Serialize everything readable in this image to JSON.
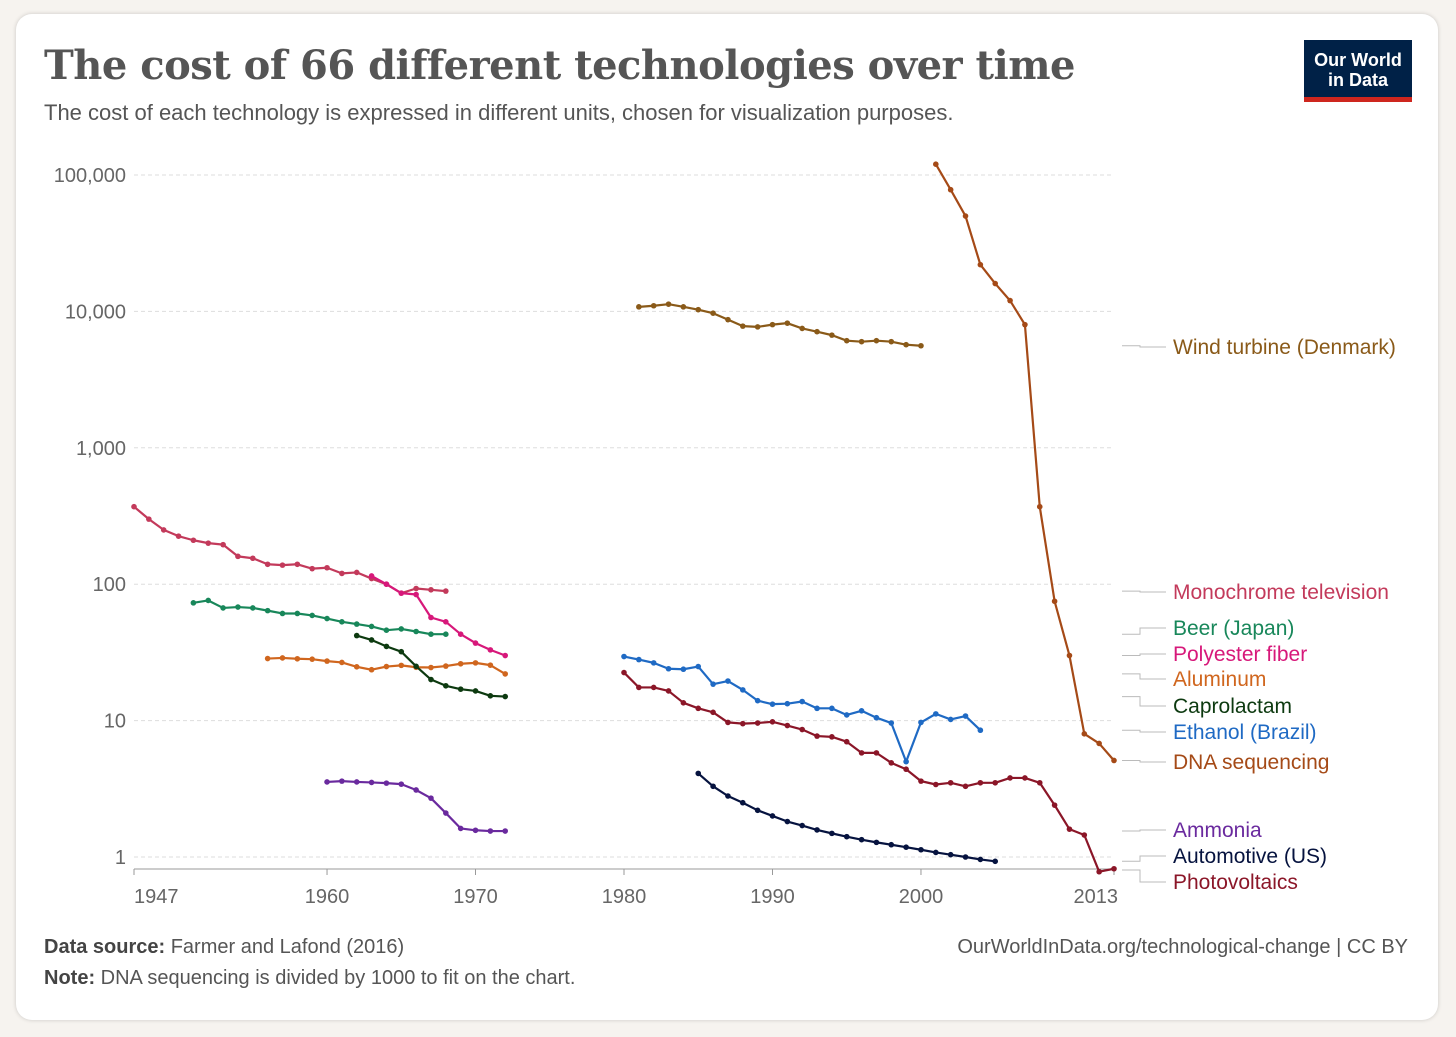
{
  "header": {
    "title": "The cost of 66 different technologies over time",
    "subtitle": "The cost of each technology is expressed in different units, chosen for visualization purposes."
  },
  "logo": {
    "line1": "Our World",
    "line2": "in Data",
    "bg": "#002147",
    "accent": "#ce261e"
  },
  "footer": {
    "source_label": "Data source:",
    "source_text": "Farmer and Lafond (2016)",
    "note_label": "Note:",
    "note_text": "DNA sequencing is divided by 1000 to fit on the chart.",
    "url": "OurWorldInData.org/technological-change",
    "license": "CC BY"
  },
  "chart_data": {
    "type": "line",
    "y_scale": "log",
    "ylim": [
      0.8,
      130000
    ],
    "xlim": [
      1947,
      2013
    ],
    "y_ticks": [
      1,
      10,
      100,
      1000,
      10000,
      100000
    ],
    "y_tick_labels": [
      "1",
      "10",
      "100",
      "1,000",
      "10,000",
      "100,000"
    ],
    "x_ticks": [
      1947,
      1960,
      1970,
      1980,
      1990,
      2000,
      2013
    ],
    "x_tick_labels": [
      "1947",
      "1960",
      "1970",
      "1980",
      "1990",
      "2000",
      "2013"
    ],
    "grid": "horizontal-dashed",
    "legend": "right-end-labels",
    "series": [
      {
        "name": "Wind turbine (Denmark)",
        "color": "#8a5a19",
        "x": [
          1981,
          1982,
          1983,
          1984,
          1985,
          1986,
          1987,
          1988,
          1989,
          1990,
          1991,
          1992,
          1993,
          1994,
          1995,
          1996,
          1997,
          1998,
          1999,
          2000
        ],
        "y": [
          10800,
          11000,
          11300,
          10800,
          10300,
          9700,
          8700,
          7800,
          7700,
          8000,
          8200,
          7500,
          7100,
          6700,
          6100,
          6000,
          6100,
          6000,
          5700,
          5600
        ]
      },
      {
        "name": "Monochrome television",
        "color": "#c33a5b",
        "x": [
          1947,
          1948,
          1949,
          1950,
          1951,
          1952,
          1953,
          1954,
          1955,
          1956,
          1957,
          1958,
          1959,
          1960,
          1961,
          1962,
          1963,
          1964,
          1965,
          1966,
          1967,
          1968
        ],
        "y": [
          370,
          300,
          250,
          225,
          210,
          200,
          195,
          160,
          155,
          140,
          138,
          140,
          130,
          132,
          120,
          122,
          110,
          100,
          86,
          93,
          91,
          89
        ]
      },
      {
        "name": "Beer (Japan)",
        "color": "#18875a",
        "x": [
          1951,
          1952,
          1953,
          1954,
          1955,
          1956,
          1957,
          1958,
          1959,
          1960,
          1961,
          1962,
          1963,
          1964,
          1965,
          1966,
          1967,
          1968
        ],
        "y": [
          73,
          76,
          67,
          68,
          67,
          64,
          61,
          61,
          59,
          56,
          53,
          51,
          49,
          46,
          47,
          45,
          43,
          43
        ]
      },
      {
        "name": "Polyester fiber",
        "color": "#d7187a",
        "x": [
          1963,
          1964,
          1965,
          1966,
          1967,
          1968,
          1969,
          1970,
          1971,
          1972
        ],
        "y": [
          115,
          100,
          86,
          84,
          57,
          53,
          43,
          37,
          33,
          30
        ]
      },
      {
        "name": "Aluminum",
        "color": "#d0661e",
        "x": [
          1956,
          1957,
          1958,
          1959,
          1960,
          1961,
          1962,
          1963,
          1964,
          1965,
          1966,
          1967,
          1968,
          1969,
          1970,
          1971,
          1972
        ],
        "y": [
          28.5,
          28.8,
          28.4,
          28.2,
          27.3,
          26.7,
          24.8,
          23.6,
          24.9,
          25.4,
          24.6,
          24.5,
          25.1,
          26.1,
          26.5,
          25.5,
          22
        ]
      },
      {
        "name": "Caprolactam",
        "color": "#0d3a10",
        "x": [
          1962,
          1963,
          1964,
          1965,
          1966,
          1967,
          1968,
          1969,
          1970,
          1971,
          1972
        ],
        "y": [
          42,
          39,
          35,
          32,
          25,
          20,
          18,
          17,
          16.5,
          15.2,
          15
        ]
      },
      {
        "name": "Ethanol (Brazil)",
        "color": "#1f6ac4",
        "x": [
          1980,
          1981,
          1982,
          1983,
          1984,
          1985,
          1986,
          1987,
          1988,
          1989,
          1990,
          1991,
          1992,
          1993,
          1994,
          1995,
          1996,
          1997,
          1998,
          1999,
          2000,
          2001,
          2002,
          2003,
          2004
        ],
        "y": [
          29.5,
          28,
          26.5,
          24,
          23.8,
          24.9,
          18.5,
          19.5,
          16.8,
          14,
          13.2,
          13.3,
          13.8,
          12.3,
          12.3,
          11,
          11.8,
          10.5,
          9.6,
          5,
          9.7,
          11.2,
          10.2,
          10.8,
          8.5
        ]
      },
      {
        "name": "DNA sequencing",
        "color": "#a54a17",
        "x": [
          2001,
          2002,
          2003,
          2004,
          2005,
          2006,
          2007,
          2008,
          2009,
          2010,
          2011,
          2012,
          2013
        ],
        "y": [
          120000,
          78000,
          50000,
          22000,
          16000,
          12000,
          8000,
          370,
          75,
          30,
          8,
          6.8,
          5.1
        ]
      },
      {
        "name": "Ammonia",
        "color": "#6a2a9e",
        "x": [
          1960,
          1961,
          1962,
          1963,
          1964,
          1965,
          1966,
          1967,
          1968,
          1969,
          1970,
          1971,
          1972
        ],
        "y": [
          3.55,
          3.6,
          3.55,
          3.52,
          3.48,
          3.42,
          3.1,
          2.7,
          2.1,
          1.62,
          1.57,
          1.55,
          1.55
        ]
      },
      {
        "name": "Automotive (US)",
        "color": "#06133f",
        "x": [
          1985,
          1986,
          1987,
          1988,
          1989,
          1990,
          1991,
          1992,
          1993,
          1994,
          1995,
          1996,
          1997,
          1998,
          1999,
          2000,
          2001,
          2002,
          2003,
          2004,
          2005
        ],
        "y": [
          4.1,
          3.3,
          2.8,
          2.5,
          2.2,
          2.0,
          1.82,
          1.7,
          1.58,
          1.49,
          1.41,
          1.34,
          1.28,
          1.23,
          1.18,
          1.13,
          1.08,
          1.04,
          1.0,
          0.96,
          0.93
        ]
      },
      {
        "name": "Photovoltaics",
        "color": "#8b1628",
        "x": [
          1980,
          1981,
          1982,
          1983,
          1984,
          1985,
          1986,
          1987,
          1988,
          1989,
          1990,
          1991,
          1992,
          1993,
          1994,
          1995,
          1996,
          1997,
          1998,
          1999,
          2000,
          2001,
          2002,
          2003,
          2004,
          2005,
          2006,
          2007,
          2008,
          2009,
          2010,
          2011,
          2012,
          2013
        ],
        "y": [
          22.5,
          17.5,
          17.5,
          16.5,
          13.5,
          12.3,
          11.5,
          9.7,
          9.5,
          9.6,
          9.8,
          9.2,
          8.6,
          7.7,
          7.6,
          7.0,
          5.8,
          5.8,
          4.9,
          4.4,
          3.6,
          3.4,
          3.5,
          3.3,
          3.5,
          3.5,
          3.8,
          3.8,
          3.5,
          2.4,
          1.6,
          1.45,
          0.78,
          0.82
        ]
      }
    ]
  }
}
